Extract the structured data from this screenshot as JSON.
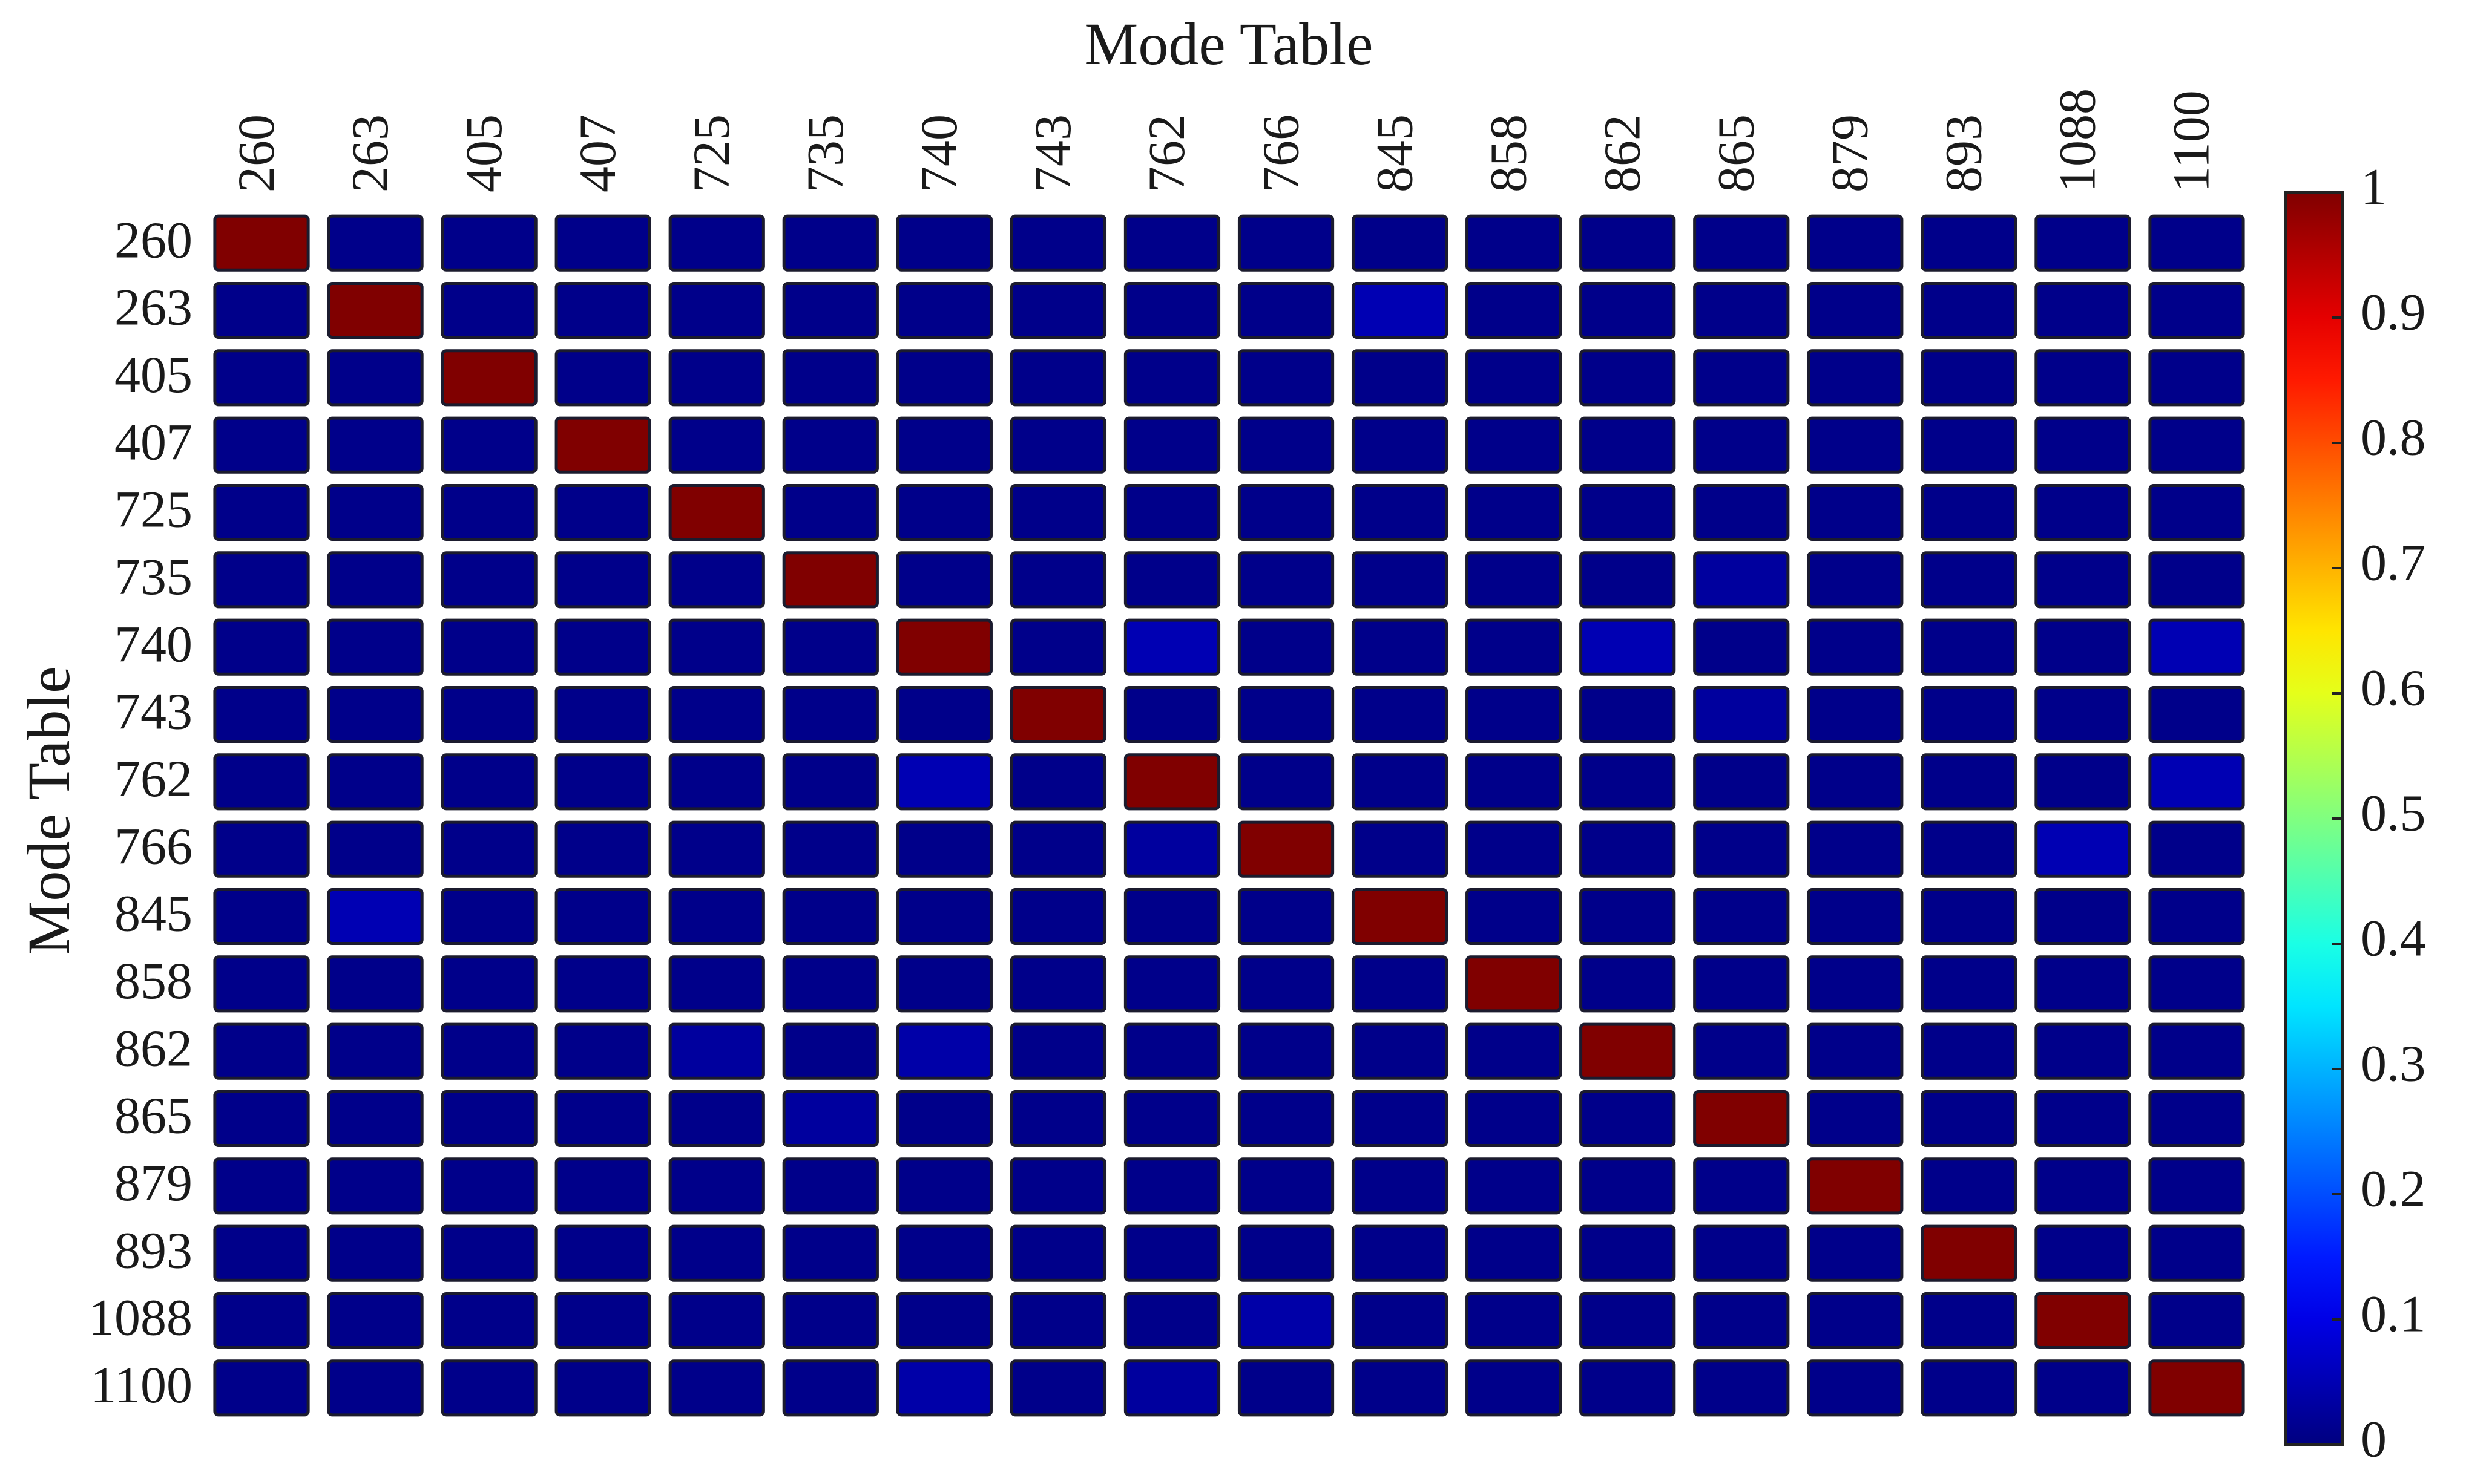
{
  "chart_data": {
    "type": "heatmap",
    "title": "Mode Table",
    "ylabel": "Mode Table",
    "x": [
      "260",
      "263",
      "405",
      "407",
      "725",
      "735",
      "740",
      "743",
      "762",
      "766",
      "845",
      "858",
      "862",
      "865",
      "879",
      "893",
      "1088",
      "1100"
    ],
    "y": [
      "260",
      "263",
      "405",
      "407",
      "725",
      "735",
      "740",
      "743",
      "762",
      "766",
      "845",
      "858",
      "862",
      "865",
      "879",
      "893",
      "1088",
      "1100"
    ],
    "z": [
      [
        1,
        0.01,
        0.01,
        0.01,
        0.01,
        0.01,
        0.01,
        0.01,
        0.01,
        0.01,
        0.01,
        0.01,
        0.01,
        0.01,
        0.01,
        0.01,
        0.01,
        0.01
      ],
      [
        0.01,
        1,
        0.01,
        0.01,
        0.01,
        0.01,
        0.01,
        0.01,
        0.01,
        0.01,
        0.05,
        0.01,
        0.01,
        0.01,
        0.01,
        0.01,
        0.01,
        0.01
      ],
      [
        0.01,
        0.01,
        1,
        0.01,
        0.01,
        0.01,
        0.01,
        0.01,
        0.01,
        0.01,
        0.01,
        0.01,
        0.01,
        0.01,
        0.01,
        0.01,
        0.01,
        0.01
      ],
      [
        0.01,
        0.01,
        0.01,
        1,
        0.01,
        0.01,
        0.01,
        0.01,
        0.01,
        0.01,
        0.01,
        0.01,
        0.01,
        0.01,
        0.01,
        0.01,
        0.01,
        0.01
      ],
      [
        0.01,
        0.01,
        0.01,
        0.01,
        1,
        0.01,
        0.01,
        0.01,
        0.01,
        0.01,
        0.01,
        0.01,
        0.01,
        0.01,
        0.01,
        0.01,
        0.01,
        0.01
      ],
      [
        0.01,
        0.01,
        0.01,
        0.01,
        0.01,
        1,
        0.01,
        0.01,
        0.01,
        0.01,
        0.01,
        0.01,
        0.01,
        0.03,
        0.01,
        0.01,
        0.01,
        0.01
      ],
      [
        0.01,
        0.01,
        0.01,
        0.01,
        0.01,
        0.01,
        1,
        0.01,
        0.05,
        0.01,
        0.01,
        0.01,
        0.05,
        0.01,
        0.01,
        0.01,
        0.01,
        0.05
      ],
      [
        0.01,
        0.01,
        0.01,
        0.01,
        0.01,
        0.01,
        0.01,
        1,
        0.01,
        0.01,
        0.01,
        0.01,
        0.01,
        0.03,
        0.01,
        0.01,
        0.01,
        0.01
      ],
      [
        0.01,
        0.01,
        0.01,
        0.01,
        0.01,
        0.01,
        0.05,
        0.01,
        1,
        0.01,
        0.01,
        0.01,
        0.01,
        0.01,
        0.01,
        0.01,
        0.01,
        0.05
      ],
      [
        0.01,
        0.01,
        0.01,
        0.01,
        0.01,
        0.01,
        0.01,
        0.01,
        0.03,
        1,
        0.01,
        0.01,
        0.01,
        0.01,
        0.01,
        0.01,
        0.05,
        0.01
      ],
      [
        0.01,
        0.05,
        0.01,
        0.01,
        0.01,
        0.01,
        0.01,
        0.01,
        0.01,
        0.01,
        1,
        0.01,
        0.01,
        0.01,
        0.01,
        0.01,
        0.01,
        0.01
      ],
      [
        0.01,
        0.01,
        0.01,
        0.01,
        0.01,
        0.01,
        0.01,
        0.01,
        0.01,
        0.01,
        0.01,
        1,
        0.01,
        0.01,
        0.01,
        0.01,
        0.01,
        0.01
      ],
      [
        0.01,
        0.01,
        0.01,
        0.01,
        0.03,
        0.01,
        0.04,
        0.01,
        0.01,
        0.01,
        0.01,
        0.01,
        1,
        0.01,
        0.01,
        0.01,
        0.01,
        0.01
      ],
      [
        0.01,
        0.01,
        0.01,
        0.01,
        0.01,
        0.03,
        0.01,
        0.01,
        0.01,
        0.01,
        0.01,
        0.01,
        0.01,
        1,
        0.01,
        0.01,
        0.01,
        0.01
      ],
      [
        0.01,
        0.01,
        0.01,
        0.01,
        0.01,
        0.01,
        0.01,
        0.01,
        0.01,
        0.01,
        0.01,
        0.01,
        0.01,
        0.01,
        1,
        0.01,
        0.01,
        0.01
      ],
      [
        0.01,
        0.01,
        0.01,
        0.01,
        0.01,
        0.01,
        0.01,
        0.01,
        0.01,
        0.01,
        0.01,
        0.01,
        0.01,
        0.01,
        0.01,
        1,
        0.01,
        0.01
      ],
      [
        0.01,
        0.01,
        0.01,
        0.01,
        0.01,
        0.01,
        0.01,
        0.01,
        0.01,
        0.04,
        0.01,
        0.01,
        0.01,
        0.01,
        0.01,
        0.01,
        1,
        0.01
      ],
      [
        0.01,
        0.01,
        0.01,
        0.01,
        0.01,
        0.01,
        0.04,
        0.01,
        0.03,
        0.01,
        0.01,
        0.01,
        0.01,
        0.01,
        0.01,
        0.01,
        0.01,
        1
      ]
    ],
    "colormap": "jet",
    "clim": [
      0,
      1
    ],
    "cticks": [
      0,
      0.1,
      0.2,
      0.3,
      0.4,
      0.5,
      0.6,
      0.7,
      0.8,
      0.9,
      1
    ]
  }
}
